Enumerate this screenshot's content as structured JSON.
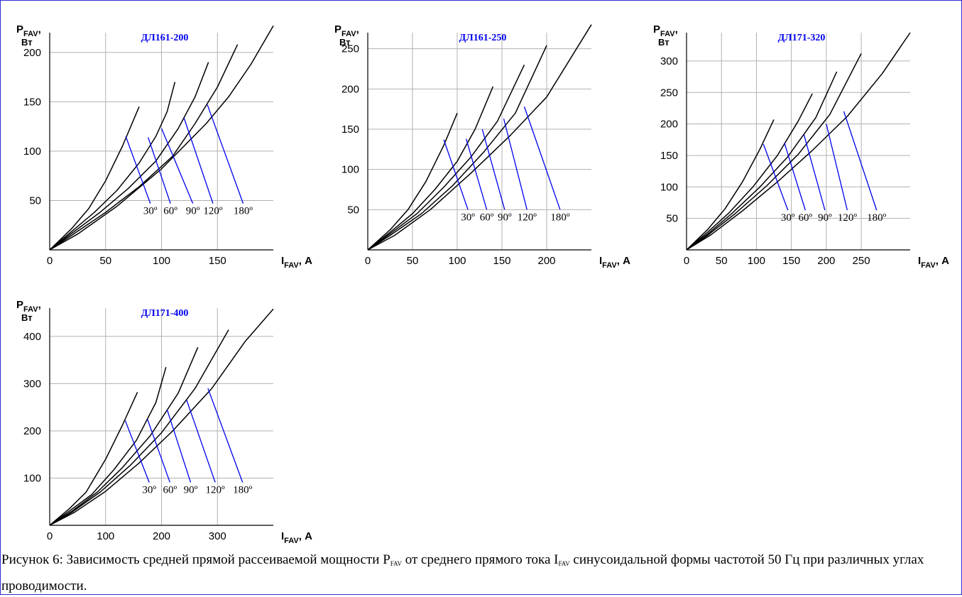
{
  "colors": {
    "frame": "#2d2dd8",
    "curve": "#000000",
    "angle_line": "#0000ee",
    "title": "#0000ee",
    "grid": "#b0b0b0"
  },
  "chart_data": [
    {
      "type": "line",
      "title": "ДЛ161-200",
      "ylabel": {
        "main": "P",
        "sub": "FAV",
        "tail": ",",
        "unit": "Вт"
      },
      "xlabel": {
        "main": "I",
        "sub": "FAV",
        "tail": ", А"
      },
      "xlim": [
        0,
        200
      ],
      "ylim": [
        0,
        220
      ],
      "xticks": [
        0,
        50,
        100,
        150
      ],
      "yticks": [
        50,
        100,
        150,
        200
      ],
      "xgrid": [
        50,
        100,
        150
      ],
      "ygrid": [
        50,
        100,
        150,
        200
      ],
      "series": [
        {
          "name": "30º",
          "x": [
            0,
            20,
            35,
            50,
            65,
            80
          ],
          "y": [
            0,
            22,
            42,
            70,
            105,
            145
          ]
        },
        {
          "name": "60º",
          "x": [
            0,
            20,
            40,
            60,
            80,
            95,
            105,
            112
          ],
          "y": [
            0,
            19,
            38,
            60,
            88,
            115,
            140,
            170
          ]
        },
        {
          "name": "90º",
          "x": [
            0,
            20,
            45,
            70,
            95,
            115,
            130,
            142
          ],
          "y": [
            0,
            17,
            38,
            62,
            90,
            123,
            155,
            190
          ]
        },
        {
          "name": "120º",
          "x": [
            0,
            20,
            50,
            80,
            110,
            130,
            150,
            168
          ],
          "y": [
            0,
            15,
            38,
            64,
            95,
            128,
            165,
            208
          ]
        },
        {
          "name": "180º",
          "x": [
            0,
            25,
            60,
            100,
            140,
            160,
            180,
            200
          ],
          "y": [
            0,
            16,
            44,
            82,
            128,
            155,
            188,
            227
          ]
        }
      ],
      "angle_lines": [
        {
          "label": "30º",
          "x1": 68,
          "y1": 115,
          "x2": 90,
          "y2": 47
        },
        {
          "label": "60º",
          "x1": 88,
          "y1": 114,
          "x2": 108,
          "y2": 47
        },
        {
          "label": "90º",
          "x1": 100,
          "y1": 123,
          "x2": 128,
          "y2": 47
        },
        {
          "label": "120º",
          "x1": 120,
          "y1": 134,
          "x2": 146,
          "y2": 47
        },
        {
          "label": "180º",
          "x1": 141,
          "y1": 147,
          "x2": 173,
          "y2": 47
        }
      ]
    },
    {
      "type": "line",
      "title": "ДЛ161-250",
      "ylabel": {
        "main": "P",
        "sub": "FAV",
        "tail": ",",
        "unit": "Вт"
      },
      "xlabel": {
        "main": "I",
        "sub": "FAV",
        "tail": ", А"
      },
      "xlim": [
        0,
        250
      ],
      "ylim": [
        0,
        270
      ],
      "xticks": [
        0,
        50,
        100,
        150,
        200
      ],
      "yticks": [
        50,
        100,
        150,
        200,
        250
      ],
      "xgrid": [
        50,
        100,
        150,
        200
      ],
      "ygrid": [
        50,
        100,
        150,
        200,
        250
      ],
      "series": [
        {
          "name": "30º",
          "x": [
            0,
            25,
            45,
            65,
            85,
            100
          ],
          "y": [
            0,
            25,
            50,
            85,
            130,
            170
          ]
        },
        {
          "name": "60º",
          "x": [
            0,
            25,
            50,
            75,
            100,
            120,
            140
          ],
          "y": [
            0,
            22,
            45,
            75,
            110,
            150,
            203
          ]
        },
        {
          "name": "90º",
          "x": [
            0,
            25,
            55,
            85,
            115,
            145,
            175
          ],
          "y": [
            0,
            20,
            45,
            78,
            115,
            160,
            230
          ]
        },
        {
          "name": "120º",
          "x": [
            0,
            25,
            60,
            95,
            130,
            165,
            200
          ],
          "y": [
            0,
            18,
            45,
            80,
            122,
            170,
            254
          ]
        },
        {
          "name": "180º",
          "x": [
            0,
            30,
            70,
            115,
            160,
            200,
            250
          ],
          "y": [
            0,
            18,
            50,
            95,
            143,
            190,
            280
          ]
        }
      ],
      "angle_lines": [
        {
          "label": "30º",
          "x1": 85,
          "y1": 137,
          "x2": 112,
          "y2": 50
        },
        {
          "label": "60º",
          "x1": 110,
          "y1": 138,
          "x2": 133,
          "y2": 50
        },
        {
          "label": "90º",
          "x1": 128,
          "y1": 150,
          "x2": 153,
          "y2": 50
        },
        {
          "label": "120º",
          "x1": 152,
          "y1": 163,
          "x2": 178,
          "y2": 50
        },
        {
          "label": "180º",
          "x1": 175,
          "y1": 178,
          "x2": 215,
          "y2": 50
        }
      ]
    },
    {
      "type": "line",
      "title": "ДЛ171-320",
      "ylabel": {
        "main": "P",
        "sub": "FAV",
        "tail": ",",
        "unit": "Вт"
      },
      "xlabel": {
        "main": "I",
        "sub": "FAV",
        "tail": ", А"
      },
      "xlim": [
        0,
        320
      ],
      "ylim": [
        0,
        345
      ],
      "xticks": [
        0,
        50,
        100,
        150,
        200,
        250
      ],
      "yticks": [
        50,
        100,
        150,
        200,
        250,
        300
      ],
      "xgrid": [
        50,
        100,
        150,
        200,
        250
      ],
      "ygrid": [
        50,
        100,
        150,
        200,
        250,
        300
      ],
      "series": [
        {
          "name": "30º",
          "x": [
            0,
            30,
            55,
            80,
            105,
            125
          ],
          "y": [
            0,
            32,
            65,
            108,
            160,
            207
          ]
        },
        {
          "name": "60º",
          "x": [
            0,
            30,
            60,
            95,
            130,
            160,
            180
          ],
          "y": [
            0,
            28,
            58,
            100,
            150,
            205,
            248
          ]
        },
        {
          "name": "90º",
          "x": [
            0,
            30,
            65,
            105,
            145,
            185,
            215
          ],
          "y": [
            0,
            25,
            58,
            100,
            148,
            210,
            283
          ]
        },
        {
          "name": "120º",
          "x": [
            0,
            30,
            70,
            115,
            160,
            205,
            250
          ],
          "y": [
            0,
            23,
            58,
            102,
            152,
            215,
            312
          ]
        },
        {
          "name": "180º",
          "x": [
            0,
            35,
            80,
            130,
            180,
            230,
            280,
            320
          ],
          "y": [
            0,
            24,
            62,
            108,
            158,
            212,
            280,
            345
          ]
        }
      ],
      "angle_lines": [
        {
          "label": "30º",
          "x1": 110,
          "y1": 168,
          "x2": 145,
          "y2": 63
        },
        {
          "label": "60º",
          "x1": 140,
          "y1": 170,
          "x2": 170,
          "y2": 63
        },
        {
          "label": "90º",
          "x1": 168,
          "y1": 183,
          "x2": 198,
          "y2": 63
        },
        {
          "label": "120º",
          "x1": 200,
          "y1": 200,
          "x2": 230,
          "y2": 63
        },
        {
          "label": "180º",
          "x1": 225,
          "y1": 220,
          "x2": 272,
          "y2": 63
        }
      ]
    },
    {
      "type": "line",
      "title": "ДЛ171-400",
      "ylabel": {
        "main": "P",
        "sub": "FAV",
        "tail": ",",
        "unit": "Вт"
      },
      "xlabel": {
        "main": "I",
        "sub": "FAV",
        "tail": ", А"
      },
      "xlim": [
        0,
        400
      ],
      "ylim": [
        0,
        460
      ],
      "xticks": [
        0,
        100,
        200,
        300
      ],
      "yticks": [
        100,
        200,
        300,
        400
      ],
      "xgrid": [
        100,
        200,
        300
      ],
      "ygrid": [
        100,
        200,
        300,
        400
      ],
      "series": [
        {
          "name": "30º",
          "x": [
            0,
            35,
            65,
            100,
            130,
            157
          ],
          "y": [
            0,
            35,
            70,
            140,
            212,
            282
          ]
        },
        {
          "name": "60º",
          "x": [
            0,
            35,
            75,
            115,
            155,
            190,
            208
          ],
          "y": [
            0,
            30,
            65,
            118,
            180,
            260,
            335
          ]
        },
        {
          "name": "90º",
          "x": [
            0,
            40,
            85,
            130,
            180,
            230,
            265
          ],
          "y": [
            0,
            30,
            70,
            122,
            190,
            280,
            377
          ]
        },
        {
          "name": "120º",
          "x": [
            0,
            40,
            90,
            145,
            200,
            260,
            320
          ],
          "y": [
            0,
            28,
            70,
            128,
            196,
            290,
            414
          ]
        },
        {
          "name": "180º",
          "x": [
            0,
            45,
            100,
            160,
            220,
            290,
            350,
            400
          ],
          "y": [
            0,
            28,
            72,
            132,
            200,
            290,
            390,
            458
          ]
        }
      ],
      "angle_lines": [
        {
          "label": "30º",
          "x1": 135,
          "y1": 222,
          "x2": 178,
          "y2": 91
        },
        {
          "label": "60º",
          "x1": 175,
          "y1": 224,
          "x2": 215,
          "y2": 91
        },
        {
          "label": "90º",
          "x1": 210,
          "y1": 245,
          "x2": 252,
          "y2": 91
        },
        {
          "label": "120º",
          "x1": 245,
          "y1": 265,
          "x2": 296,
          "y2": 91
        },
        {
          "label": "180º",
          "x1": 283,
          "y1": 290,
          "x2": 345,
          "y2": 91
        }
      ]
    }
  ],
  "caption": {
    "part1": "Рисунок 6: Зависимость средней прямой рассеиваемой мощности P",
    "sub1": "FAV",
    "part2": " от среднего прямого тока I",
    "sub2": "FAV",
    "part3": " синусоидальной формы частотой 50 Гц при различных углах проводимости."
  }
}
